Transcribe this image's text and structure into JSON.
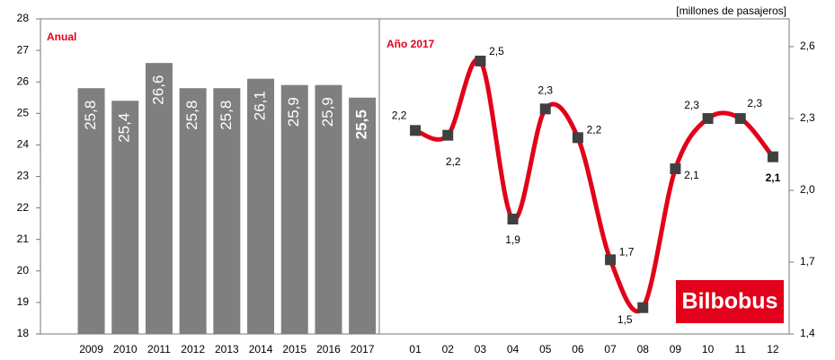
{
  "logo": "Bilbobus",
  "chart_data": [
    {
      "type": "bar",
      "title": "Anual",
      "categories": [
        null,
        "2009",
        "2010",
        "2011",
        "2012",
        "2013",
        "2014",
        "2015",
        "2016",
        "2017"
      ],
      "values": [
        null,
        25.8,
        25.4,
        26.6,
        25.8,
        25.8,
        26.1,
        25.9,
        25.9,
        25.5
      ],
      "value_labels": [
        null,
        "25,8",
        "25,4",
        "26,6",
        "25,8",
        "25,8",
        "26,1",
        "25,9",
        "25,9",
        "25,5"
      ],
      "color": "#7f7f7f",
      "ylim": [
        18,
        28
      ],
      "yticks": [
        18,
        19,
        20,
        21,
        22,
        23,
        24,
        25,
        26,
        27,
        28
      ]
    },
    {
      "type": "line",
      "title": "Año 2017",
      "unit_label": "[millones de pasajeros]",
      "categories": [
        "01",
        "02",
        "03",
        "04",
        "05",
        "06",
        "07",
        "08",
        "09",
        "10",
        "11",
        "12"
      ],
      "series": [
        {
          "name": "Año 2017",
          "color": "#e2001a",
          "axis": "y2",
          "values": [
            2.25,
            2.23,
            2.54,
            1.88,
            2.34,
            2.22,
            1.71,
            1.51,
            2.09,
            2.3,
            2.3,
            2.14
          ],
          "value_labels": [
            "2,2",
            "2,2",
            "2,5",
            "1,9",
            "2,3",
            "2,2",
            "1,7",
            "1,5",
            "2,1",
            "2,3",
            "2,3",
            "2,1"
          ]
        }
      ],
      "y2lim": [
        1.4,
        2.6
      ],
      "y2ticks": [
        {
          "value": 1.4,
          "label": "1,4"
        },
        {
          "value": 1.7,
          "label": "1,7"
        },
        {
          "value": 2.0,
          "label": "2,0"
        },
        {
          "value": 2.3,
          "label": "2,3"
        },
        {
          "value": 2.6,
          "label": "2,6"
        }
      ]
    }
  ]
}
